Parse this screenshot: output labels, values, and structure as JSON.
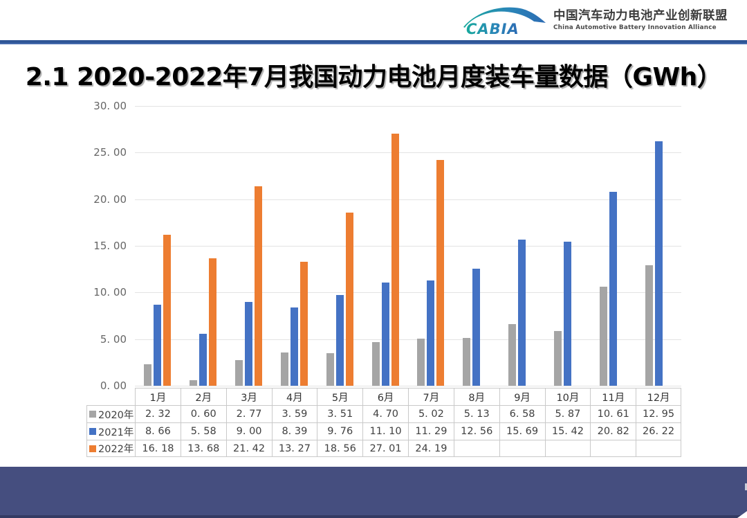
{
  "header": {
    "logo_text": "CABIA",
    "org_name_zh": "中国汽车动力电池产业创新联盟",
    "org_name_en": "China Automotive Battery Innovation Alliance"
  },
  "title": "2.1 2020-2022年7月我国动力电池月度装车量数据（GWh）",
  "chart_data": {
    "type": "bar",
    "title": "2020-2022年7月我国动力电池月度装车量数据（GWh）",
    "categories": [
      "1月",
      "2月",
      "3月",
      "4月",
      "5月",
      "6月",
      "7月",
      "8月",
      "9月",
      "10月",
      "11月",
      "12月"
    ],
    "series": [
      {
        "name": "2020年",
        "color": "#a5a5a5",
        "values": [
          2.32,
          0.6,
          2.77,
          3.59,
          3.51,
          4.7,
          5.02,
          5.13,
          6.58,
          5.87,
          10.61,
          12.95
        ]
      },
      {
        "name": "2021年",
        "color": "#4472c4",
        "values": [
          8.66,
          5.58,
          9.0,
          8.39,
          9.76,
          11.1,
          11.29,
          12.56,
          15.69,
          15.42,
          20.82,
          26.22
        ]
      },
      {
        "name": "2022年",
        "color": "#ed7d31",
        "values": [
          16.18,
          13.68,
          21.42,
          13.27,
          18.56,
          27.01,
          24.19,
          null,
          null,
          null,
          null,
          null
        ]
      }
    ],
    "xlabel": "",
    "ylabel": "",
    "ylim": [
      0,
      30
    ],
    "ytick_step": 5,
    "ytick_labels": [
      "0.00",
      "5.00",
      "10.00",
      "15.00",
      "20.00",
      "25.00",
      "30.00"
    ],
    "grid": true,
    "legend_position": "table-row-headers",
    "data_table_attached": true
  },
  "colors": {
    "divider_blue": "#2e5596",
    "footer_band": "#454e7f",
    "footer_strip": "#343b63",
    "gridline": "#e3e3e3",
    "axis_text": "#666666",
    "table_border": "#c9c9c9",
    "logo_teal": "#18a99d",
    "logo_blue": "#2c6bb3"
  }
}
